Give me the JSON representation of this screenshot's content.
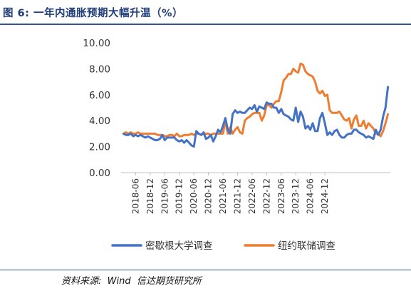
{
  "header": {
    "title": "图 6:  一年内通胀预期大幅升温（%）"
  },
  "footer": {
    "source": "资料来源:  Wind  信达期货研究所"
  },
  "chart_data": {
    "type": "line",
    "ylim": [
      0,
      10
    ],
    "ytick_labels": [
      "0.00",
      "2.00",
      "4.00",
      "6.00",
      "8.00",
      "10.00"
    ],
    "xtick_labels": [
      "2018-06",
      "2018-12",
      "2019-06",
      "2019-12",
      "2020-06",
      "2020-12",
      "2021-06",
      "2021-12",
      "2022-06",
      "2022-12",
      "2023-06",
      "2023-12",
      "2024-06",
      "2024-12"
    ],
    "grid": false,
    "legend_position": "bottom",
    "x_start": "2018-01",
    "series": [
      {
        "name": "密歇根大学调查",
        "color": "#4472c4",
        "values": [
          3.0,
          2.9,
          2.9,
          3.0,
          2.8,
          2.9,
          2.8,
          2.9,
          2.8,
          2.7,
          2.8,
          2.7,
          2.6,
          2.5,
          2.5,
          2.6,
          2.9,
          2.5,
          2.7,
          2.7,
          2.7,
          2.7,
          2.5,
          2.4,
          2.5,
          2.3,
          2.5,
          2.3,
          2.1,
          2.0,
          3.2,
          3.0,
          2.9,
          3.1,
          2.6,
          2.7,
          2.9,
          2.4,
          2.8,
          3.3,
          3.1,
          3.6,
          4.2,
          3.3,
          3.0,
          4.5,
          4.8,
          4.6,
          4.7,
          4.6,
          4.6,
          4.8,
          5.0,
          4.9,
          5.2,
          4.7,
          5.1,
          5.0,
          4.9,
          5.4,
          5.3,
          5.3,
          5.0,
          5.0,
          4.6,
          4.9,
          4.5,
          4.4,
          4.3,
          4.1,
          4.0,
          5.0,
          3.9,
          4.7,
          4.3,
          3.4,
          3.6,
          3.3,
          3.8,
          3.2,
          3.2,
          4.2,
          4.6,
          3.8,
          2.9,
          3.1,
          2.9,
          3.2,
          3.3,
          2.9,
          2.7,
          2.7,
          2.9,
          3.0,
          3.0,
          3.3,
          3.3,
          3.1,
          3.0,
          2.9,
          2.7,
          2.8,
          2.7,
          2.6,
          3.3,
          2.9,
          3.3,
          4.3,
          5.0,
          6.6
        ]
      },
      {
        "name": "纽约联储调查",
        "color": "#ed7d31",
        "values": [
          3.0,
          3.1,
          3.0,
          3.1,
          3.0,
          3.0,
          3.1,
          3.0,
          3.0,
          3.0,
          3.0,
          3.0,
          3.0,
          3.0,
          2.9,
          2.9,
          2.9,
          2.8,
          2.8,
          2.9,
          2.9,
          2.8,
          3.0,
          2.8,
          2.8,
          2.9,
          2.9,
          2.9,
          3.0,
          2.9,
          3.0,
          3.0,
          2.9,
          3.0,
          3.0,
          3.0,
          2.9,
          3.0,
          3.0,
          3.0,
          3.0,
          3.0,
          4.0,
          3.0,
          3.5,
          3.0,
          3.3,
          3.5,
          3.1,
          3.0,
          4.0,
          4.2,
          4.3,
          4.5,
          4.6,
          4.6,
          4.6,
          4.0,
          4.4,
          5.2,
          5.2,
          5.0,
          5.3,
          5.5,
          5.5,
          6.2,
          7.1,
          7.3,
          7.6,
          7.6,
          8.0,
          7.8,
          7.7,
          8.4,
          8.3,
          7.8,
          7.6,
          7.5,
          7.4,
          7.0,
          6.3,
          6.1,
          6.3,
          5.9,
          6.0,
          4.8,
          4.6,
          4.6,
          4.6,
          4.7,
          4.4,
          4.1,
          4.0,
          4.2,
          3.4,
          4.1,
          4.4,
          3.6,
          3.6,
          4.0,
          3.4,
          3.8,
          3.6,
          3.4,
          3.0,
          3.0,
          2.8,
          3.2,
          3.8,
          4.5
        ]
      }
    ]
  }
}
